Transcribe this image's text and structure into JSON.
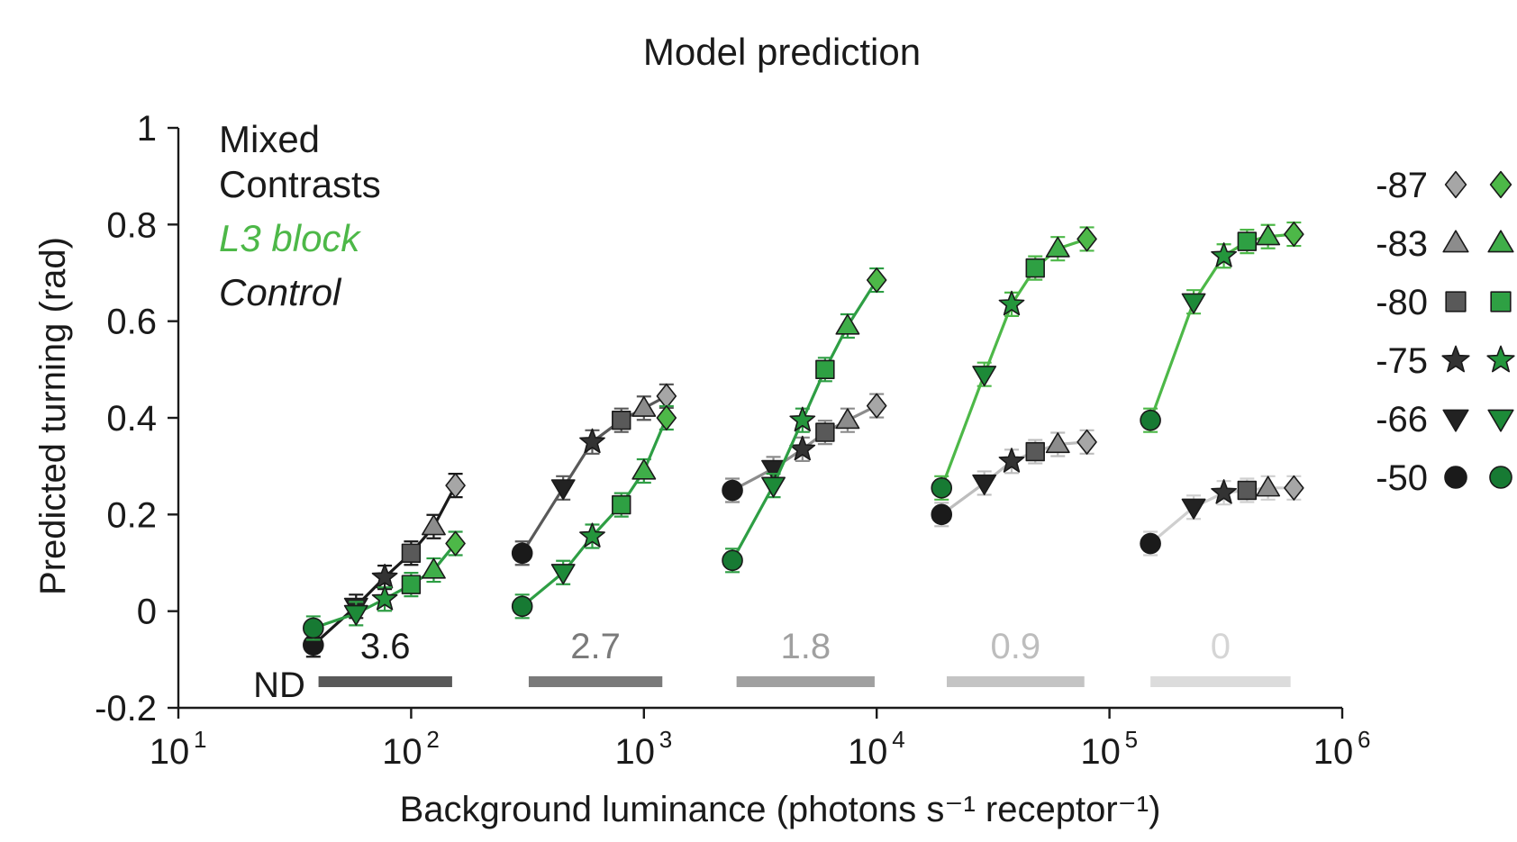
{
  "chart_data": {
    "type": "line",
    "title": "Model prediction",
    "xlabel": "Background luminance (photons s⁻¹ receptor⁻¹)",
    "ylabel": "Predicted turning (rad)",
    "xscale": "log",
    "xlim": [
      10,
      1000000
    ],
    "ylim": [
      -0.2,
      1
    ],
    "x_ticks": [
      {
        "value": 10,
        "base": "10",
        "exp": "1"
      },
      {
        "value": 100,
        "base": "10",
        "exp": "2"
      },
      {
        "value": 1000,
        "base": "10",
        "exp": "3"
      },
      {
        "value": 10000,
        "base": "10",
        "exp": "4"
      },
      {
        "value": 100000,
        "base": "10",
        "exp": "5"
      },
      {
        "value": 1000000,
        "base": "10",
        "exp": "6"
      }
    ],
    "y_ticks": [
      {
        "value": 1,
        "label": "1"
      },
      {
        "value": 0.8,
        "label": "0.8"
      },
      {
        "value": 0.6,
        "label": "0.6"
      },
      {
        "value": 0.4,
        "label": "0.4"
      },
      {
        "value": 0.2,
        "label": "0.2"
      },
      {
        "value": 0,
        "label": "0"
      },
      {
        "value": -0.2,
        "label": "-0.2"
      }
    ],
    "legend_text": [
      {
        "text": "Mixed",
        "color": "#1a1a1a",
        "italic": false
      },
      {
        "text": "Contrasts",
        "color": "#1a1a1a",
        "italic": false
      },
      {
        "text": "L3 block",
        "color": "#4db848",
        "italic": true
      },
      {
        "text": "Control",
        "color": "#1a1a1a",
        "italic": true
      }
    ],
    "contrast_key": [
      {
        "label": "-87",
        "marker": "diamond",
        "control_color": "#a6a6a6",
        "block_color": "#4db848"
      },
      {
        "label": "-83",
        "marker": "triangle-up",
        "control_color": "#8c8c8c",
        "block_color": "#3fae49"
      },
      {
        "label": "-80",
        "marker": "square",
        "control_color": "#595959",
        "block_color": "#2ea043"
      },
      {
        "label": "-75",
        "marker": "star",
        "control_color": "#333333",
        "block_color": "#24963c"
      },
      {
        "label": "-66",
        "marker": "triangle-down",
        "control_color": "#222222",
        "block_color": "#1d8a38"
      },
      {
        "label": "-50",
        "marker": "circle",
        "control_color": "#1a1a1a",
        "block_color": "#177a33"
      }
    ],
    "nd_label": "ND",
    "nd_bars": [
      {
        "label": "3.6",
        "x_range": [
          40,
          150
        ],
        "color": "#595959",
        "label_color": "#1a1a1a"
      },
      {
        "label": "2.7",
        "x_range": [
          320,
          1200
        ],
        "color": "#7a7a7a",
        "label_color": "#7a7a7a"
      },
      {
        "label": "1.8",
        "x_range": [
          2500,
          9800
        ],
        "color": "#a0a0a0",
        "label_color": "#a0a0a0"
      },
      {
        "label": "0.9",
        "x_range": [
          20000,
          78000
        ],
        "color": "#c4c4c4",
        "label_color": "#bdbdbd"
      },
      {
        "label": "0",
        "x_range": [
          150000,
          600000
        ],
        "color": "#dcdcdc",
        "label_color": "#d5d5d5"
      }
    ],
    "marker_order": [
      "circle",
      "triangle-down",
      "star",
      "square",
      "triangle-up",
      "diamond"
    ],
    "groups": [
      {
        "nd": "3.6",
        "control": {
          "line_color": "#1a1a1a",
          "x": [
            38,
            58,
            77,
            100,
            125,
            155
          ],
          "y": [
            -0.07,
            0.01,
            0.07,
            0.12,
            0.175,
            0.26
          ]
        },
        "block": {
          "line_color": "#2e9e44",
          "x": [
            38,
            58,
            77,
            100,
            125,
            155
          ],
          "y": [
            -0.035,
            -0.005,
            0.025,
            0.055,
            0.085,
            0.14
          ]
        }
      },
      {
        "nd": "2.7",
        "control": {
          "line_color": "#595959",
          "x": [
            300,
            450,
            600,
            800,
            1000,
            1250
          ],
          "y": [
            0.12,
            0.255,
            0.35,
            0.395,
            0.42,
            0.445
          ]
        },
        "block": {
          "line_color": "#2e9e44",
          "x": [
            300,
            450,
            600,
            800,
            1000,
            1250
          ],
          "y": [
            0.01,
            0.08,
            0.155,
            0.22,
            0.29,
            0.4
          ]
        }
      },
      {
        "nd": "1.8",
        "control": {
          "line_color": "#8c8c8c",
          "x": [
            2400,
            3600,
            4800,
            6000,
            7500,
            10000
          ],
          "y": [
            0.25,
            0.295,
            0.335,
            0.37,
            0.395,
            0.425
          ]
        },
        "block": {
          "line_color": "#2e9e44",
          "x": [
            2400,
            3600,
            4800,
            6000,
            7500,
            10000
          ],
          "y": [
            0.105,
            0.26,
            0.395,
            0.5,
            0.59,
            0.685
          ]
        }
      },
      {
        "nd": "0.9",
        "control": {
          "line_color": "#bdbdbd",
          "x": [
            19000,
            29000,
            38000,
            48000,
            60000,
            80000
          ],
          "y": [
            0.2,
            0.265,
            0.31,
            0.33,
            0.345,
            0.35
          ]
        },
        "block": {
          "line_color": "#4db848",
          "x": [
            19000,
            29000,
            38000,
            48000,
            60000,
            80000
          ],
          "y": [
            0.255,
            0.49,
            0.635,
            0.71,
            0.75,
            0.77
          ]
        }
      },
      {
        "nd": "0",
        "control": {
          "line_color": "#cfcfcf",
          "x": [
            150000,
            230000,
            310000,
            390000,
            480000,
            620000
          ],
          "y": [
            0.14,
            0.215,
            0.245,
            0.25,
            0.255,
            0.255
          ]
        },
        "block": {
          "line_color": "#4db848",
          "x": [
            150000,
            230000,
            310000,
            390000,
            480000,
            620000
          ],
          "y": [
            0.395,
            0.64,
            0.735,
            0.765,
            0.775,
            0.78
          ]
        }
      }
    ],
    "grid": false,
    "legend": "top-left text legend; marker key at right"
  }
}
